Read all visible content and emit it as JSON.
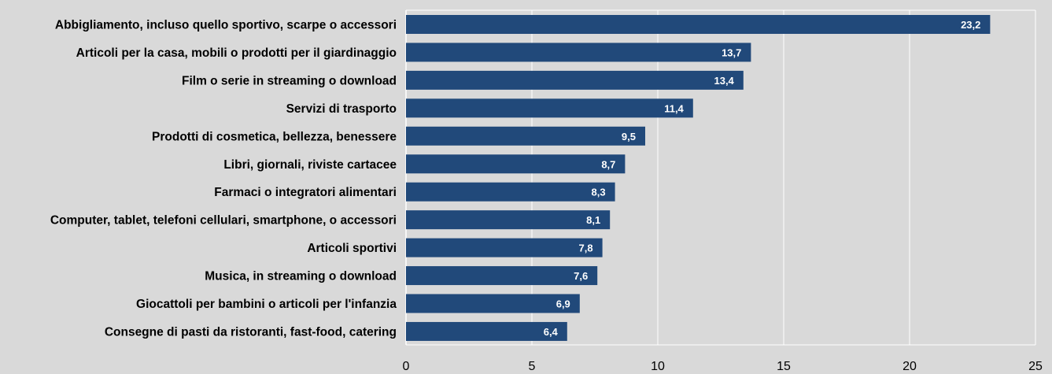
{
  "chart_data": {
    "type": "bar",
    "orientation": "horizontal",
    "title": "",
    "xlabel": "",
    "ylabel": "",
    "xlim": [
      0,
      25
    ],
    "x_ticks": [
      0,
      5,
      10,
      15,
      20,
      25
    ],
    "grid": "vertical",
    "legend": "none",
    "colors": {
      "bar": "#21497a",
      "background": "#d9d9d9",
      "grid": "#ffffff",
      "value_label": "#ffffff"
    },
    "categories": [
      "Abbigliamento, incluso quello sportivo, scarpe o accessori",
      "Articoli per la casa, mobili o prodotti per il giardinaggio",
      "Film o serie in streaming o download",
      "Servizi di trasporto",
      "Prodotti di cosmetica, bellezza, benessere",
      "Libri, giornali, riviste cartacee",
      "Farmaci o integratori alimentari",
      "Computer, tablet, telefoni cellulari, smartphone, o accessori",
      "Articoli sportivi",
      "Musica, in streaming o download",
      "Giocattoli per bambini o articoli per l'infanzia",
      "Consegne di pasti da ristoranti, fast-food, catering"
    ],
    "values": [
      23.2,
      13.7,
      13.4,
      11.4,
      9.5,
      8.7,
      8.3,
      8.1,
      7.8,
      7.6,
      6.9,
      6.4
    ],
    "value_labels": [
      "23,2",
      "13,7",
      "13,4",
      "11,4",
      "9,5",
      "8,7",
      "8,3",
      "8,1",
      "7,8",
      "7,6",
      "6,9",
      "6,4"
    ]
  }
}
